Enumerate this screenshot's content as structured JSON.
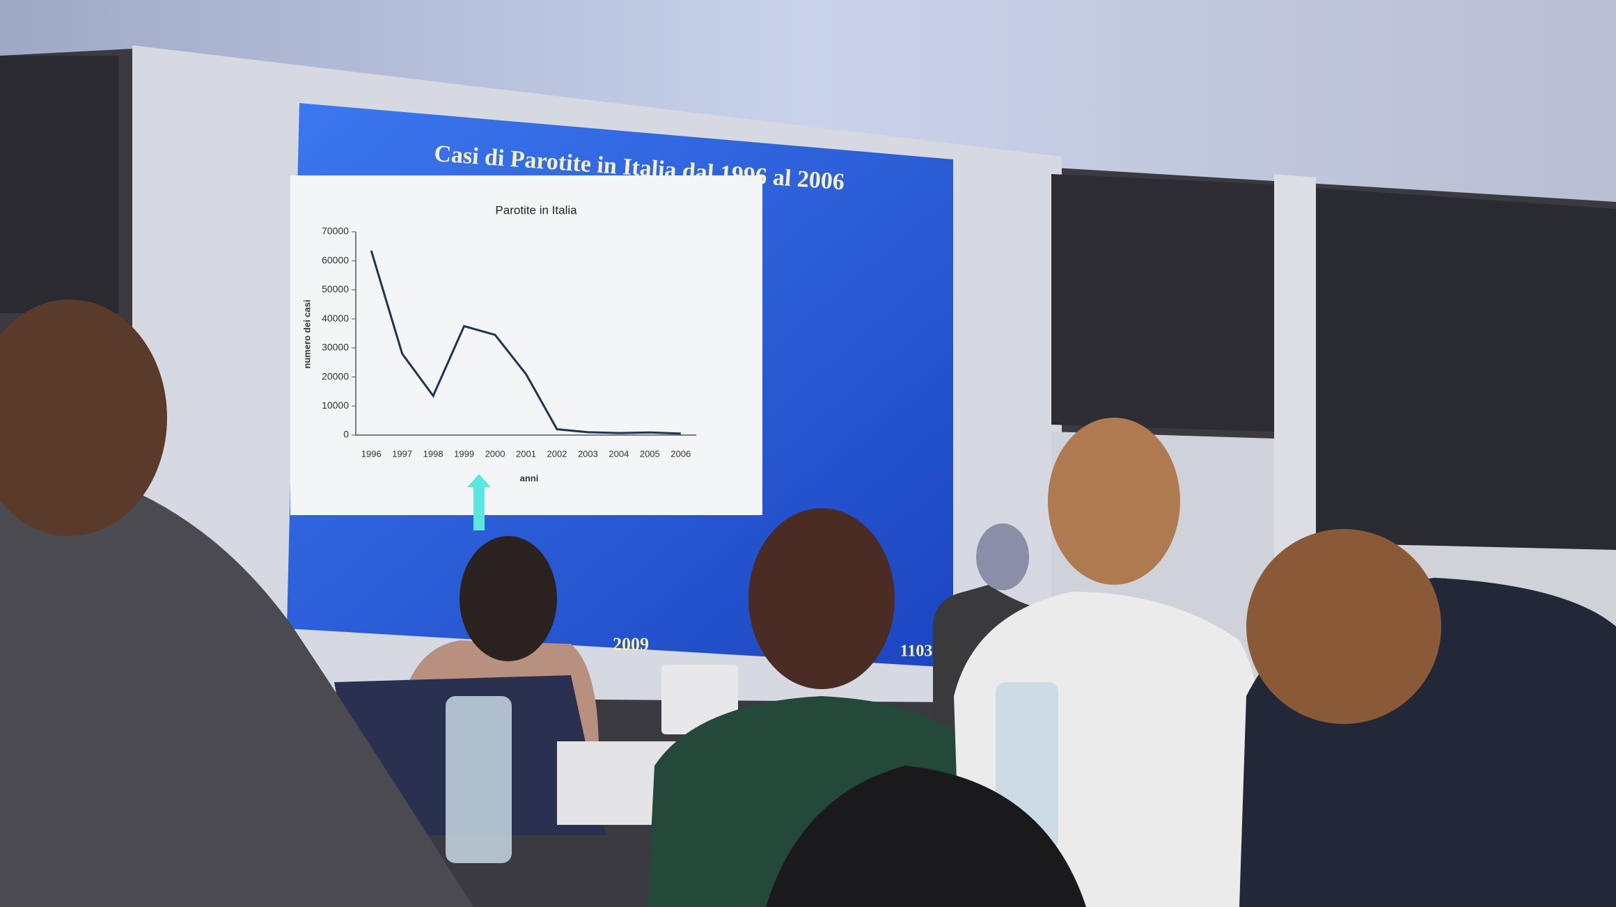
{
  "slide": {
    "title": "Casi di Parotite in Italia dal 1996 al 2006",
    "footer_year": "2009",
    "page_number": "1103"
  },
  "chart_data": {
    "type": "line",
    "title": "Parotite in Italia",
    "xlabel": "anni",
    "ylabel": "numero dei casi",
    "categories": [
      "1996",
      "1997",
      "1998",
      "1999",
      "2000",
      "2001",
      "2002",
      "2003",
      "2004",
      "2005",
      "2006"
    ],
    "values": [
      63500,
      28000,
      13500,
      37500,
      34500,
      21000,
      2000,
      1000,
      700,
      900,
      500
    ],
    "color": "#1f3550",
    "ylim": [
      0,
      70000
    ],
    "yticks": [
      0,
      10000,
      20000,
      30000,
      40000,
      50000,
      60000,
      70000
    ]
  }
}
